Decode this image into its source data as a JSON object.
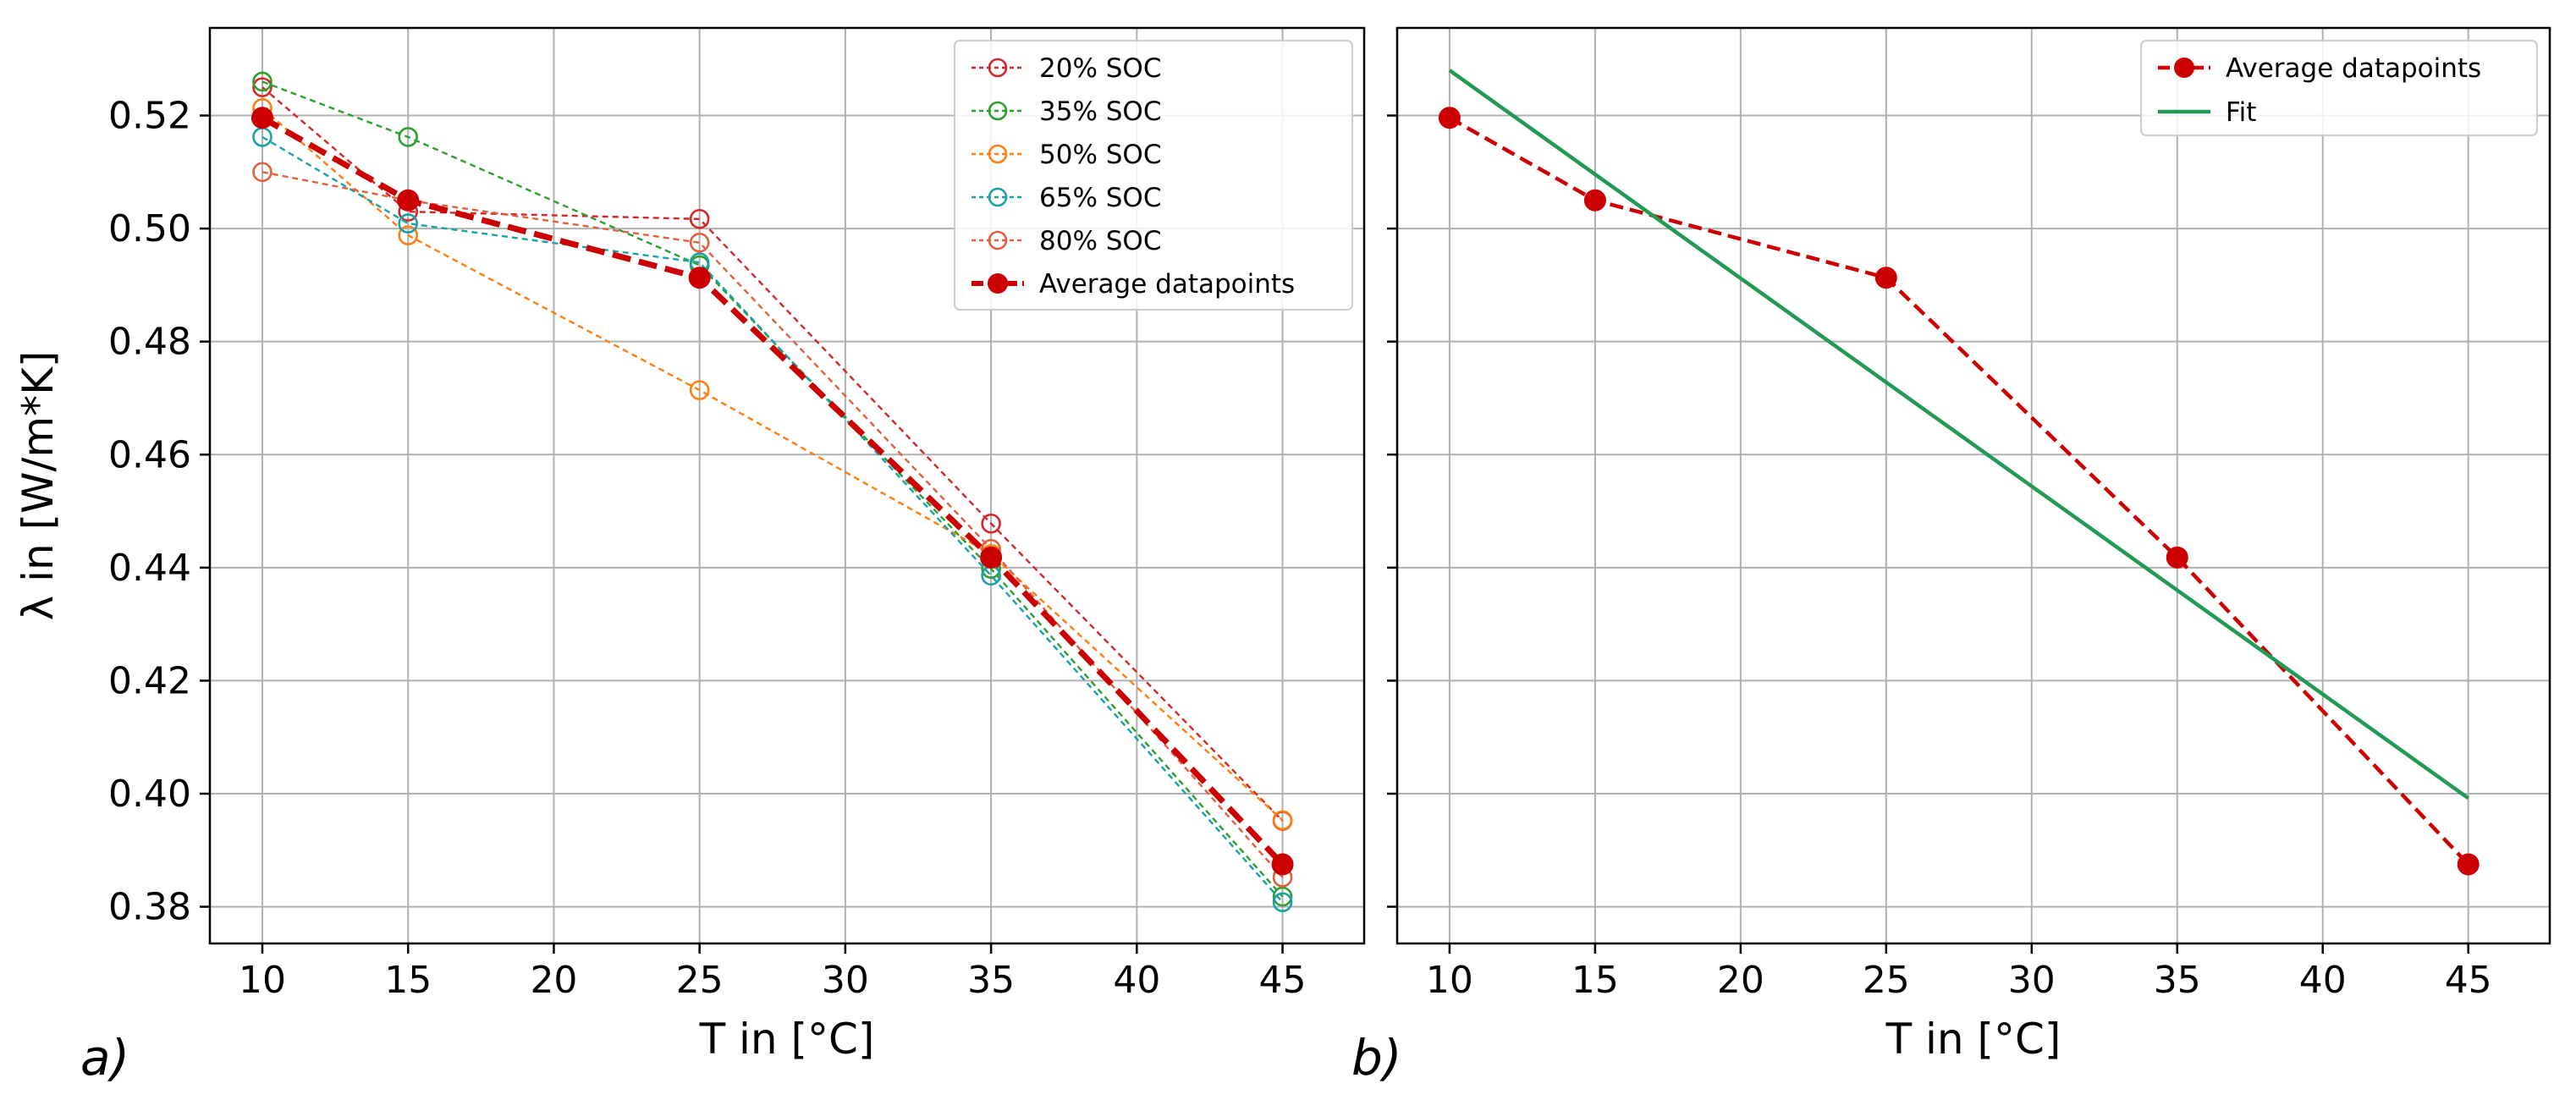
{
  "chart_data": [
    {
      "type": "line",
      "panel_label": "a)",
      "xlabel": "T in [°C]",
      "ylabel": "λ in [W/m*K]",
      "xlim": [
        8.2,
        47.8
      ],
      "ylim": [
        0.3735,
        0.5355
      ],
      "xticks": [
        10,
        15,
        20,
        25,
        30,
        35,
        40,
        45
      ],
      "yticks": [
        0.38,
        0.4,
        0.42,
        0.44,
        0.46,
        0.48,
        0.5,
        0.52
      ],
      "ytick_labels": [
        "0.38",
        "0.40",
        "0.42",
        "0.44",
        "0.46",
        "0.48",
        "0.50",
        "0.52"
      ],
      "grid": true,
      "legend_position": "top-right",
      "x": [
        10,
        15,
        25,
        35,
        45
      ],
      "series": [
        {
          "name": "20% SOC",
          "color": "#d62728",
          "style": "dotted",
          "marker": "open-circle",
          "values": [
            0.525,
            0.503,
            0.5017,
            0.4478,
            0.3952
          ]
        },
        {
          "name": "35% SOC",
          "color": "#2ca02c",
          "style": "dotted",
          "marker": "open-circle",
          "values": [
            0.526,
            0.5162,
            0.4935,
            0.4398,
            0.3818
          ]
        },
        {
          "name": "50% SOC",
          "color": "#ff7f0e",
          "style": "dotted",
          "marker": "open-circle",
          "values": [
            0.5213,
            0.4988,
            0.4714,
            0.4424,
            0.3953
          ]
        },
        {
          "name": "65% SOC",
          "color": "#17a2a8",
          "style": "dotted",
          "marker": "open-circle",
          "values": [
            0.5162,
            0.5009,
            0.494,
            0.4386,
            0.3808
          ]
        },
        {
          "name": "80% SOC",
          "color": "#e06040",
          "style": "dotted",
          "marker": "open-circle",
          "values": [
            0.51,
            0.505,
            0.4975,
            0.4433,
            0.3852
          ]
        },
        {
          "name": "Average datapoints",
          "color": "#cc0000",
          "style": "dashed-thick",
          "marker": "filled-circle",
          "values": [
            0.5196,
            0.505,
            0.4913,
            0.4418,
            0.3875
          ]
        }
      ]
    },
    {
      "type": "line",
      "panel_label": "b)",
      "xlabel": "T in [°C]",
      "ylabel": "",
      "xlim": [
        8.2,
        47.8
      ],
      "ylim": [
        0.3735,
        0.5355
      ],
      "xticks": [
        10,
        15,
        20,
        25,
        30,
        35,
        40,
        45
      ],
      "yticks": [
        0.38,
        0.4,
        0.42,
        0.44,
        0.46,
        0.48,
        0.5,
        0.52
      ],
      "ytick_labels": [],
      "grid": true,
      "legend_position": "top-right",
      "x": [
        10,
        15,
        25,
        35,
        45
      ],
      "series": [
        {
          "name": "Average datapoints",
          "color": "#cc0000",
          "style": "dashed",
          "marker": "filled-circle",
          "values": [
            0.5196,
            0.505,
            0.4913,
            0.4418,
            0.3875
          ]
        },
        {
          "name": "Fit",
          "color": "#229954",
          "style": "solid",
          "marker": "none",
          "x": [
            10,
            45
          ],
          "values": [
            0.528,
            0.3992
          ]
        }
      ]
    }
  ]
}
